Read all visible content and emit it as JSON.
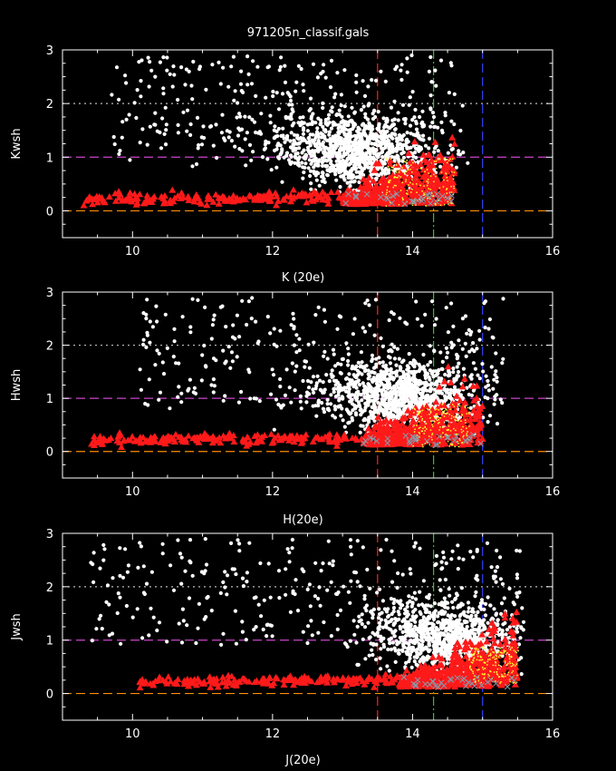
{
  "title": "971205n_classif.gals",
  "colors": {
    "background": "#000000",
    "axes": "#ffffff",
    "galaxy_points": "#ffffff",
    "star_triangles": "#ff1a1a",
    "star_crosses": "#8899aa",
    "yellow_points": "#ffff33",
    "line_y0": "#ff8c00",
    "line_y1": "#cc44cc",
    "line_y2": "#bbbbbb",
    "vline_red": "#ff2222",
    "vline_green": "#22cc22",
    "vline_blue": "#3344ff"
  },
  "chart_data": [
    {
      "type": "scatter",
      "xlabel": "K (20e)",
      "ylabel": "Kwsh",
      "xlim": [
        9,
        16
      ],
      "ylim": [
        -0.5,
        3
      ],
      "xticks": [
        "10",
        "12",
        "14",
        "16"
      ],
      "yticks": [
        "0",
        "1",
        "2",
        "3"
      ],
      "hlines": [
        0,
        1,
        2
      ],
      "vlines": [
        13.5,
        14.3,
        15.0
      ],
      "clouds": {
        "galaxies": {
          "x_range": [
            9.7,
            14.8
          ],
          "y_range": [
            0.2,
            2.9
          ],
          "center": [
            13.2,
            1.1
          ]
        },
        "stars": {
          "x_range": [
            9.3,
            15.0
          ],
          "center_y": 0.2,
          "dense_x": [
            13.0,
            14.6
          ]
        },
        "yellow": {
          "x_range": [
            13.6,
            14.6
          ],
          "y_range": [
            0.1,
            1.0
          ]
        }
      }
    },
    {
      "type": "scatter",
      "xlabel": "H(20e)",
      "ylabel": "Hwsh",
      "xlim": [
        9,
        16
      ],
      "ylim": [
        -0.5,
        3
      ],
      "xticks": [
        "10",
        "12",
        "14",
        "16"
      ],
      "yticks": [
        "0",
        "1",
        "2",
        "3"
      ],
      "hlines": [
        0,
        1,
        2
      ],
      "vlines": [
        13.5,
        14.3,
        15.0
      ],
      "clouds": {
        "galaxies": {
          "x_range": [
            10.1,
            15.3
          ],
          "y_range": [
            0.2,
            2.9
          ],
          "center": [
            13.8,
            1.0
          ]
        },
        "stars": {
          "x_range": [
            9.4,
            15.8
          ],
          "center_y": 0.2,
          "dense_x": [
            13.3,
            15.0
          ]
        },
        "yellow": {
          "x_range": [
            14.0,
            14.8
          ],
          "y_range": [
            0.1,
            0.9
          ]
        }
      }
    },
    {
      "type": "scatter",
      "xlabel": "J(20e)",
      "ylabel": "Jwsh",
      "xlim": [
        9,
        16
      ],
      "ylim": [
        -0.5,
        3
      ],
      "xticks": [
        "10",
        "12",
        "14",
        "16"
      ],
      "yticks": [
        "0",
        "1",
        "2",
        "3"
      ],
      "hlines": [
        0,
        1,
        2
      ],
      "vlines": [
        13.5,
        14.3,
        15.0
      ],
      "clouds": {
        "galaxies": {
          "x_range": [
            9.4,
            15.6
          ],
          "y_range": [
            0.3,
            2.9
          ],
          "center": [
            14.5,
            1.0
          ]
        },
        "stars": {
          "x_range": [
            10.1,
            16.0
          ],
          "center_y": 0.2,
          "dense_x": [
            13.8,
            15.5
          ]
        },
        "yellow": {
          "x_range": [
            14.8,
            15.5
          ],
          "y_range": [
            0.2,
            0.9
          ]
        }
      }
    }
  ]
}
